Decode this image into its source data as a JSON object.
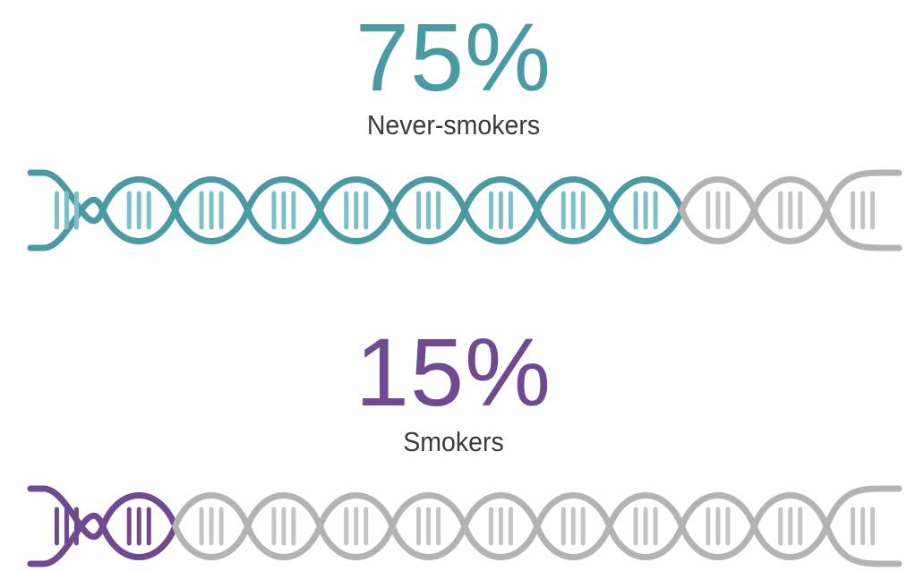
{
  "stats": [
    {
      "percent_label": "75%",
      "caption": "Never-smokers",
      "fraction": 0.75,
      "color": "#4a9aa3",
      "rung_color": "#7cbfc8"
    },
    {
      "percent_label": "15%",
      "caption": "Smokers",
      "fraction": 0.15,
      "color": "#6f4a90",
      "rung_color": "#6f4a90"
    }
  ],
  "inactive_color": "#b3b3b3",
  "inactive_rung_color": "#c4c4c4",
  "helix_segments": 12
}
